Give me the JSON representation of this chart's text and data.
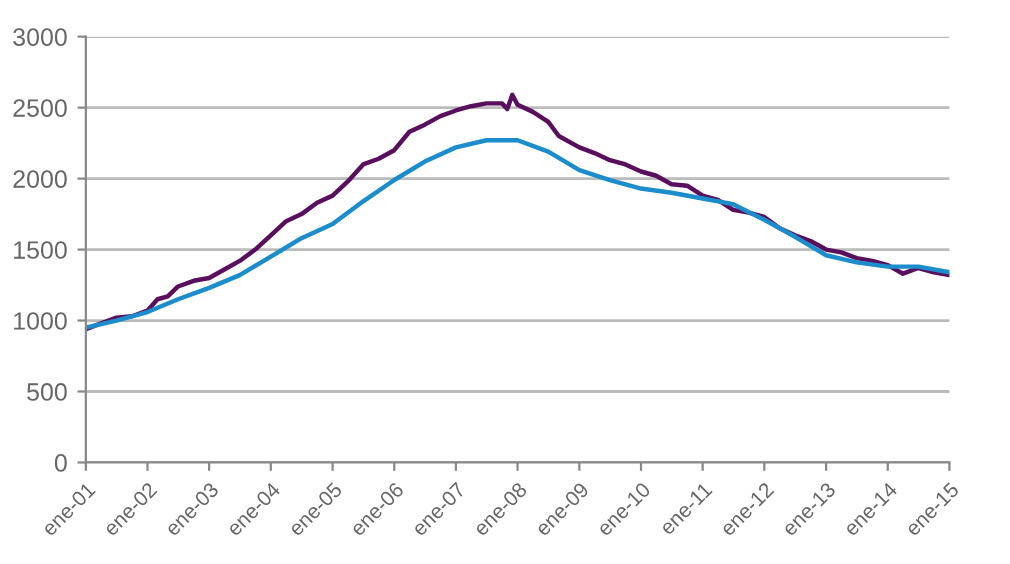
{
  "chart_data": {
    "type": "line",
    "xlim": [
      "2001-01",
      "2015-01"
    ],
    "xticks": [
      {
        "value": "2001-01",
        "label": "ene-01"
      },
      {
        "value": "2002-01",
        "label": "ene-02"
      },
      {
        "value": "2003-01",
        "label": "ene-03"
      },
      {
        "value": "2004-01",
        "label": "ene-04"
      },
      {
        "value": "2005-01",
        "label": "ene-05"
      },
      {
        "value": "2006-01",
        "label": "ene-06"
      },
      {
        "value": "2007-01",
        "label": "ene-07"
      },
      {
        "value": "2008-01",
        "label": "ene-08"
      },
      {
        "value": "2009-01",
        "label": "ene-09"
      },
      {
        "value": "2010-01",
        "label": "ene-10"
      },
      {
        "value": "2011-01",
        "label": "ene-11"
      },
      {
        "value": "2012-01",
        "label": "ene-12"
      },
      {
        "value": "2013-01",
        "label": "ene-13"
      },
      {
        "value": "2014-01",
        "label": "ene-14"
      },
      {
        "value": "2015-01",
        "label": "ene-15"
      }
    ],
    "ylim": [
      0,
      3000
    ],
    "yticks": [
      0,
      500,
      1000,
      1500,
      2000,
      2500,
      3000
    ],
    "grid": "y",
    "marker": "none",
    "line_style": "solid",
    "series": [
      {
        "color": "#5a0f5e",
        "x": [
          "2001-01",
          "2001-04",
          "2001-07",
          "2001-10",
          "2002-01",
          "2002-03",
          "2002-05",
          "2002-07",
          "2002-10",
          "2003-01",
          "2003-04",
          "2003-07",
          "2003-10",
          "2004-01",
          "2004-04",
          "2004-07",
          "2004-10",
          "2005-01",
          "2005-04",
          "2005-07",
          "2005-10",
          "2006-01",
          "2006-04",
          "2006-07",
          "2006-10",
          "2007-01",
          "2007-04",
          "2007-07",
          "2007-10",
          "2007-11",
          "2007-12",
          "2008-01",
          "2008-04",
          "2008-07",
          "2008-09",
          "2009-01",
          "2009-04",
          "2009-07",
          "2009-10",
          "2010-01",
          "2010-04",
          "2010-07",
          "2010-10",
          "2011-01",
          "2011-04",
          "2011-07",
          "2011-10",
          "2012-01",
          "2012-04",
          "2012-07",
          "2012-10",
          "2013-01",
          "2013-04",
          "2013-07",
          "2013-10",
          "2014-01",
          "2014-04",
          "2014-07",
          "2014-10",
          "2015-01"
        ],
        "values": [
          940,
          980,
          1020,
          1030,
          1070,
          1150,
          1170,
          1240,
          1280,
          1300,
          1360,
          1420,
          1500,
          1600,
          1700,
          1750,
          1830,
          1880,
          1980,
          2100,
          2140,
          2200,
          2330,
          2380,
          2440,
          2480,
          2510,
          2530,
          2530,
          2490,
          2590,
          2520,
          2470,
          2400,
          2300,
          2220,
          2180,
          2130,
          2100,
          2050,
          2020,
          1960,
          1950,
          1880,
          1850,
          1780,
          1760,
          1730,
          1650,
          1600,
          1560,
          1500,
          1480,
          1440,
          1420,
          1390,
          1330,
          1370,
          1340,
          1320
        ]
      },
      {
        "color": "#1b8ccc",
        "x": [
          "2001-01",
          "2001-07",
          "2002-01",
          "2002-07",
          "2003-01",
          "2003-07",
          "2004-01",
          "2004-07",
          "2005-01",
          "2005-07",
          "2006-01",
          "2006-07",
          "2007-01",
          "2007-07",
          "2008-01",
          "2008-07",
          "2009-01",
          "2009-07",
          "2010-01",
          "2010-07",
          "2011-01",
          "2011-07",
          "2012-01",
          "2012-07",
          "2013-01",
          "2013-07",
          "2014-01",
          "2014-07",
          "2015-01"
        ],
        "values": [
          950,
          1000,
          1060,
          1150,
          1230,
          1320,
          1450,
          1580,
          1680,
          1840,
          1990,
          2120,
          2220,
          2270,
          2270,
          2190,
          2060,
          1990,
          1930,
          1900,
          1860,
          1820,
          1710,
          1590,
          1460,
          1410,
          1380,
          1380,
          1340
        ]
      }
    ]
  }
}
